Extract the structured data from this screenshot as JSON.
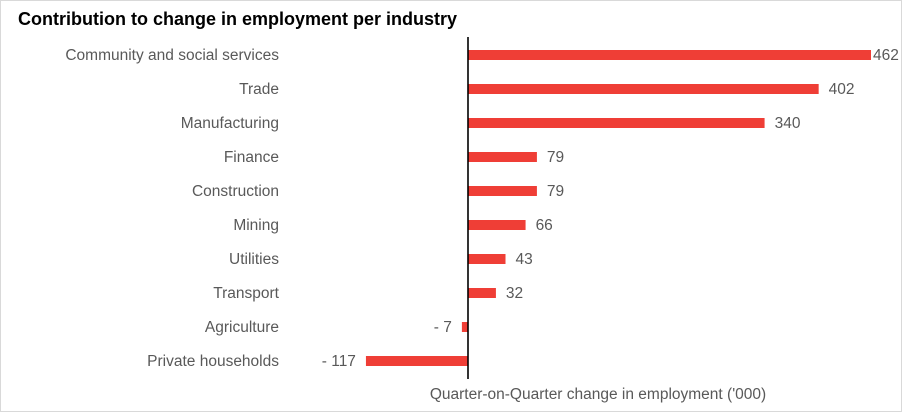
{
  "chart_data": {
    "type": "bar",
    "orientation": "horizontal",
    "title": "Contribution to change in employment per industry",
    "xlabel": "Quarter-on-Quarter change in employment ('000)",
    "ylabel": "",
    "categories": [
      "Community and social services",
      "Trade",
      "Manufacturing",
      "Finance",
      "Construction",
      "Mining",
      "Utilities",
      "Transport",
      "Agriculture",
      "Private households"
    ],
    "values": [
      462,
      402,
      340,
      79,
      79,
      66,
      43,
      32,
      -7,
      -117
    ],
    "value_labels": [
      "462",
      "402",
      "340",
      "79",
      "79",
      "66",
      "43",
      "32",
      "- 7",
      "- 117"
    ],
    "xlim": [
      -117,
      462
    ],
    "grid": false,
    "legend": "none",
    "bar_color": "#EF3E36",
    "axis_color": "#000000"
  }
}
